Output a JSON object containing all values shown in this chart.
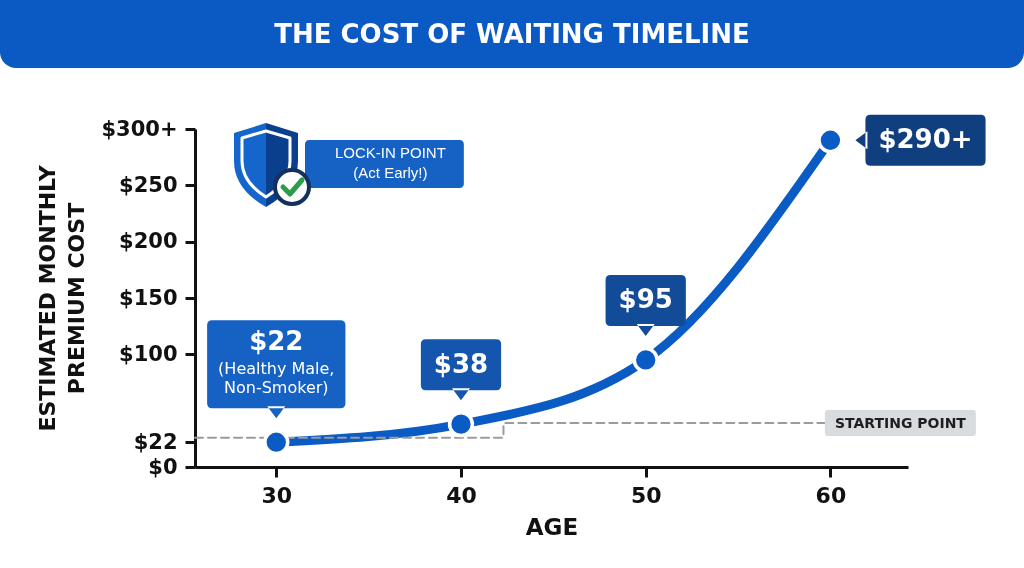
{
  "chart_data": {
    "type": "line",
    "title": "THE COST OF WAITING TIMELINE",
    "xlabel": "AGE",
    "ylabel": "ESTIMATED MONTHLY PREMIUM COST",
    "x": [
      30,
      40,
      50,
      60
    ],
    "xlim": [
      25.6,
      64.2
    ],
    "xticks": [
      30,
      40,
      50,
      60
    ],
    "ylim": [
      0,
      300
    ],
    "yticks": [
      {
        "value": 0,
        "label": "$0"
      },
      {
        "value": 22,
        "label": "$22"
      },
      {
        "value": 100,
        "label": "$100"
      },
      {
        "value": 150,
        "label": "$150"
      },
      {
        "value": 200,
        "label": "$200"
      },
      {
        "value": 250,
        "label": "$250"
      },
      {
        "value": 300,
        "label": "$300+"
      }
    ],
    "marker": "circle",
    "series": [
      {
        "color": "#0a5bc4",
        "values": [
          22,
          38,
          95,
          290
        ],
        "value_labels": [
          "$22",
          "$38",
          "$95",
          "$290+"
        ]
      },
      {
        "name": "STARTING POINT",
        "type": "step",
        "x": [
          25.6,
          42.3,
          59.7
        ],
        "values": [
          26,
          39,
          39
        ],
        "color": "#9b9b9b",
        "line_style": "dashed",
        "marker": "none"
      }
    ],
    "annotations": [
      {
        "text": "(Healthy Male, Non-Smoker)",
        "x": 30,
        "y": 22
      },
      "LOCK-IN POINT (Act Early!)"
    ]
  }
}
